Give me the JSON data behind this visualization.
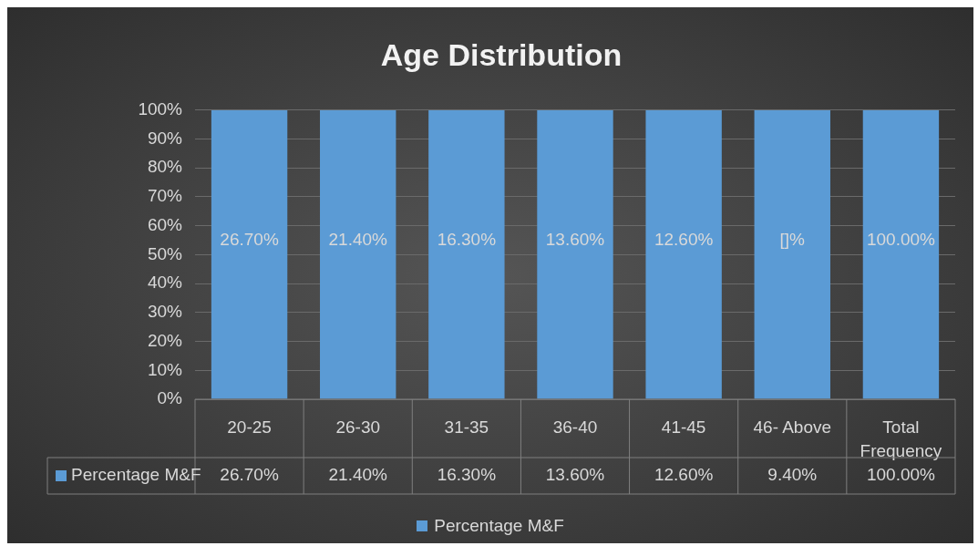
{
  "chart_data": {
    "type": "bar",
    "title": "Age Distribution",
    "categories": [
      "20-25",
      "26-30",
      "31-35",
      "36-40",
      "41-45",
      "46- Above",
      "Total Frequency"
    ],
    "series": [
      {
        "name": "Percentage M&F",
        "color": "#5b9bd5",
        "values": [
          100,
          100,
          100,
          100,
          100,
          100,
          100
        ]
      }
    ],
    "value_labels": [
      "26.70%",
      "21.40%",
      "16.30%",
      "13.60%",
      "12.60%",
      "[]%",
      "100.00%"
    ],
    "annotations": [
      "26.70%",
      "21.40%",
      "16.30%",
      "13.60%",
      "12.60%",
      "9.40%",
      "100.00%"
    ],
    "ylim": [
      0,
      100
    ],
    "yticks": [
      {
        "value": 0,
        "label": "0%"
      },
      {
        "value": 10,
        "label": "10%"
      },
      {
        "value": 20,
        "label": "20%"
      },
      {
        "value": 30,
        "label": "30%"
      },
      {
        "value": 40,
        "label": "40%"
      },
      {
        "value": 50,
        "label": "50%"
      },
      {
        "value": 60,
        "label": "60%"
      },
      {
        "value": 70,
        "label": "70%"
      },
      {
        "value": 80,
        "label": "80%"
      },
      {
        "value": 90,
        "label": "90%"
      },
      {
        "value": 100,
        "label": "100%"
      }
    ],
    "grid": "y",
    "legend": "bottom"
  }
}
